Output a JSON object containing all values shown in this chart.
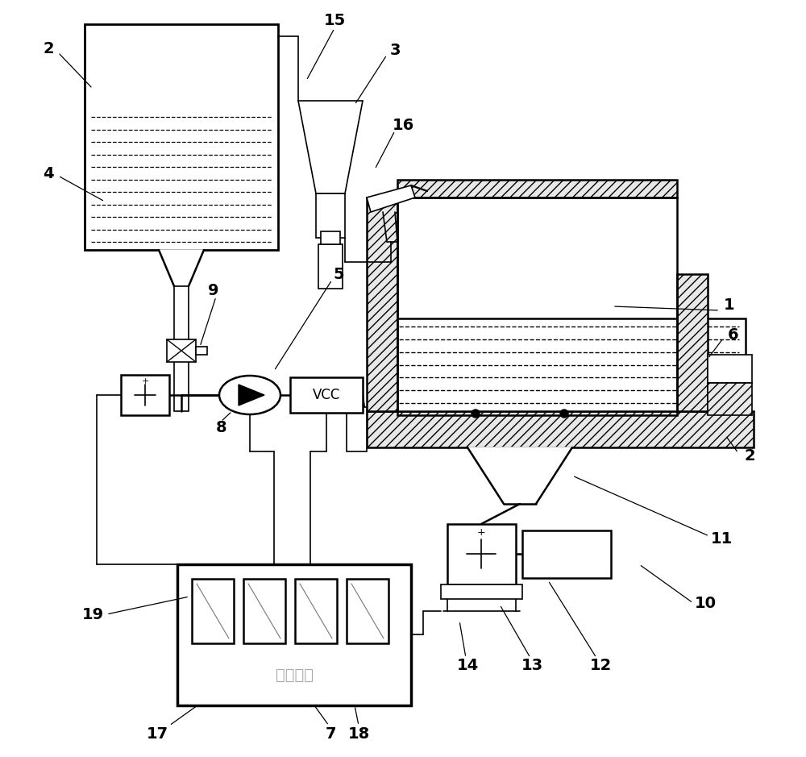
{
  "bg": "#ffffff",
  "vcc_text": "VCC",
  "ctrl_text": "控制单元",
  "ctrl_color": "#aaaaaa",
  "lw_main": 1.8,
  "lw_thin": 1.2,
  "lw_ctrl": 2.5
}
